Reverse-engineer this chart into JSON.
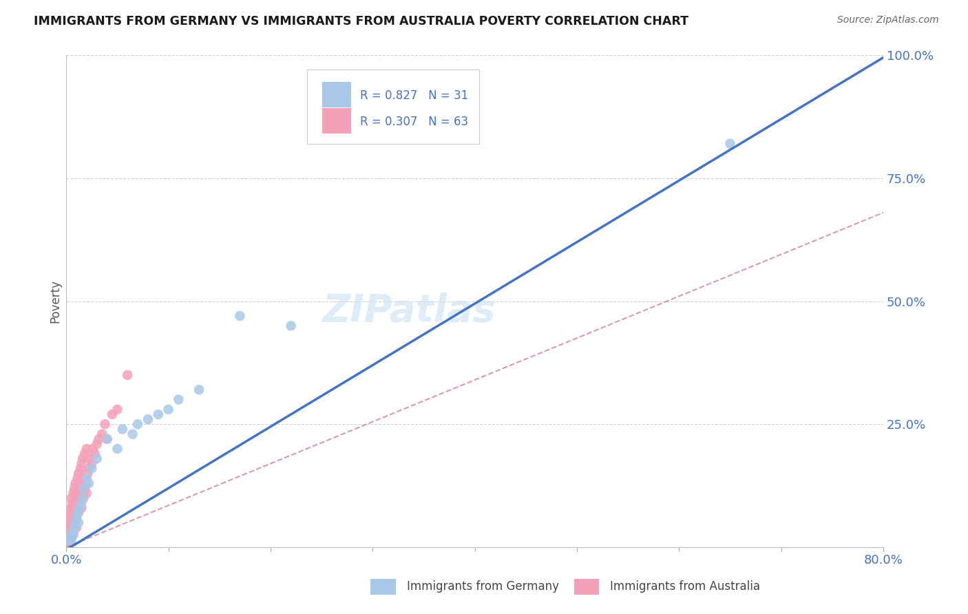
{
  "title": "IMMIGRANTS FROM GERMANY VS IMMIGRANTS FROM AUSTRALIA POVERTY CORRELATION CHART",
  "source_text": "Source: ZipAtlas.com",
  "ylabel": "Poverty",
  "xlim": [
    0.0,
    0.8
  ],
  "ylim": [
    0.0,
    1.0
  ],
  "germany_R": 0.827,
  "germany_N": 31,
  "australia_R": 0.307,
  "australia_N": 63,
  "germany_color": "#a8c8e8",
  "australia_color": "#f4a0b8",
  "germany_line_color": "#4472c4",
  "australia_line_color": "#d48090",
  "background_color": "#ffffff",
  "grid_color": "#cccccc",
  "axis_label_color": "#4472c4",
  "watermark_color": "#d0e4f4",
  "germany_line_slope": 1.25,
  "germany_line_intercept": -0.005,
  "australia_line_slope": 0.85,
  "australia_line_intercept": 0.0,
  "germany_x": [
    0.003,
    0.004,
    0.005,
    0.006,
    0.007,
    0.008,
    0.009,
    0.01,
    0.011,
    0.012,
    0.013,
    0.015,
    0.016,
    0.017,
    0.02,
    0.022,
    0.025,
    0.03,
    0.04,
    0.05,
    0.055,
    0.065,
    0.07,
    0.08,
    0.09,
    0.1,
    0.11,
    0.13,
    0.17,
    0.22,
    0.65
  ],
  "germany_y": [
    0.01,
    0.02,
    0.015,
    0.03,
    0.025,
    0.04,
    0.05,
    0.06,
    0.07,
    0.05,
    0.08,
    0.09,
    0.1,
    0.12,
    0.14,
    0.13,
    0.16,
    0.18,
    0.22,
    0.2,
    0.24,
    0.23,
    0.25,
    0.26,
    0.27,
    0.28,
    0.3,
    0.32,
    0.47,
    0.45,
    0.82
  ],
  "australia_x": [
    0.001,
    0.002,
    0.002,
    0.003,
    0.003,
    0.003,
    0.004,
    0.004,
    0.005,
    0.005,
    0.005,
    0.005,
    0.006,
    0.006,
    0.006,
    0.007,
    0.007,
    0.007,
    0.007,
    0.008,
    0.008,
    0.008,
    0.009,
    0.009,
    0.009,
    0.01,
    0.01,
    0.01,
    0.011,
    0.011,
    0.012,
    0.012,
    0.012,
    0.013,
    0.013,
    0.014,
    0.014,
    0.015,
    0.015,
    0.015,
    0.016,
    0.016,
    0.017,
    0.017,
    0.018,
    0.018,
    0.019,
    0.02,
    0.02,
    0.021,
    0.022,
    0.023,
    0.025,
    0.026,
    0.028,
    0.03,
    0.032,
    0.035,
    0.038,
    0.04,
    0.045,
    0.05,
    0.06
  ],
  "australia_y": [
    0.03,
    0.01,
    0.05,
    0.02,
    0.04,
    0.07,
    0.03,
    0.06,
    0.02,
    0.05,
    0.08,
    0.1,
    0.04,
    0.07,
    0.09,
    0.03,
    0.06,
    0.08,
    0.11,
    0.05,
    0.08,
    0.12,
    0.06,
    0.09,
    0.13,
    0.04,
    0.07,
    0.11,
    0.08,
    0.14,
    0.07,
    0.1,
    0.15,
    0.09,
    0.13,
    0.1,
    0.16,
    0.08,
    0.12,
    0.17,
    0.11,
    0.18,
    0.1,
    0.14,
    0.12,
    0.19,
    0.13,
    0.11,
    0.2,
    0.15,
    0.16,
    0.18,
    0.17,
    0.2,
    0.19,
    0.21,
    0.22,
    0.23,
    0.25,
    0.22,
    0.27,
    0.28,
    0.35
  ]
}
